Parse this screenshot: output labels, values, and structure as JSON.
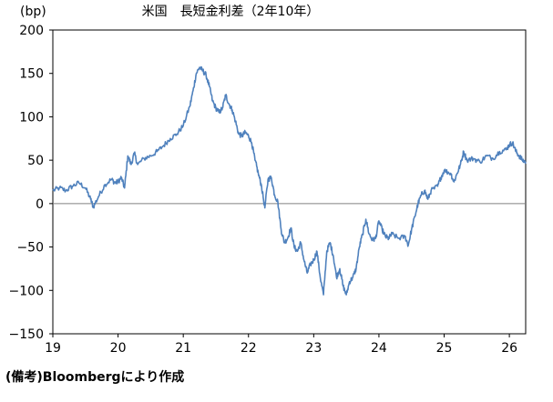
{
  "chart_data": {
    "type": "line",
    "title": "米国　長短金利差（2年10年）",
    "ylabel": "(bp)",
    "xlabel": "",
    "ylim": [
      -150,
      200
    ],
    "yticks": [
      200,
      150,
      100,
      50,
      0,
      -50,
      -100,
      -150
    ],
    "xlim": [
      2019,
      2026.25
    ],
    "xtick_labels": [
      "19",
      "20",
      "21",
      "22",
      "23",
      "24",
      "25",
      "26"
    ],
    "xtick_positions": [
      2019,
      2020,
      2021,
      2022,
      2023,
      2024,
      2025,
      2026
    ],
    "zero_line": true,
    "grid": false,
    "legend": "none",
    "series": [
      {
        "color": "#4f81bd",
        "points": [
          [
            2019.0,
            15
          ],
          [
            2019.1,
            18
          ],
          [
            2019.2,
            15
          ],
          [
            2019.3,
            20
          ],
          [
            2019.4,
            24
          ],
          [
            2019.5,
            18
          ],
          [
            2019.58,
            5
          ],
          [
            2019.62,
            -4
          ],
          [
            2019.7,
            8
          ],
          [
            2019.8,
            22
          ],
          [
            2019.9,
            28
          ],
          [
            2019.95,
            24
          ],
          [
            2020.0,
            25
          ],
          [
            2020.05,
            30
          ],
          [
            2020.1,
            18
          ],
          [
            2020.15,
            55
          ],
          [
            2020.2,
            45
          ],
          [
            2020.25,
            58
          ],
          [
            2020.3,
            45
          ],
          [
            2020.4,
            52
          ],
          [
            2020.5,
            55
          ],
          [
            2020.6,
            60
          ],
          [
            2020.7,
            67
          ],
          [
            2020.8,
            75
          ],
          [
            2020.9,
            80
          ],
          [
            2021.0,
            90
          ],
          [
            2021.1,
            112
          ],
          [
            2021.15,
            130
          ],
          [
            2021.2,
            150
          ],
          [
            2021.25,
            157
          ],
          [
            2021.3,
            153
          ],
          [
            2021.35,
            148
          ],
          [
            2021.4,
            135
          ],
          [
            2021.45,
            118
          ],
          [
            2021.5,
            110
          ],
          [
            2021.55,
            105
          ],
          [
            2021.6,
            110
          ],
          [
            2021.65,
            125
          ],
          [
            2021.7,
            115
          ],
          [
            2021.75,
            108
          ],
          [
            2021.8,
            95
          ],
          [
            2021.85,
            80
          ],
          [
            2021.9,
            78
          ],
          [
            2021.95,
            82
          ],
          [
            2022.0,
            78
          ],
          [
            2022.05,
            70
          ],
          [
            2022.1,
            50
          ],
          [
            2022.15,
            35
          ],
          [
            2022.2,
            20
          ],
          [
            2022.25,
            -5
          ],
          [
            2022.3,
            28
          ],
          [
            2022.35,
            30
          ],
          [
            2022.4,
            10
          ],
          [
            2022.45,
            2
          ],
          [
            2022.5,
            -30
          ],
          [
            2022.55,
            -45
          ],
          [
            2022.6,
            -40
          ],
          [
            2022.65,
            -28
          ],
          [
            2022.7,
            -50
          ],
          [
            2022.75,
            -55
          ],
          [
            2022.8,
            -45
          ],
          [
            2022.85,
            -65
          ],
          [
            2022.9,
            -80
          ],
          [
            2022.95,
            -70
          ],
          [
            2023.0,
            -65
          ],
          [
            2023.05,
            -55
          ],
          [
            2023.1,
            -85
          ],
          [
            2023.15,
            -105
          ],
          [
            2023.2,
            -55
          ],
          [
            2023.25,
            -45
          ],
          [
            2023.3,
            -60
          ],
          [
            2023.35,
            -85
          ],
          [
            2023.4,
            -75
          ],
          [
            2023.45,
            -95
          ],
          [
            2023.5,
            -105
          ],
          [
            2023.55,
            -90
          ],
          [
            2023.6,
            -85
          ],
          [
            2023.65,
            -75
          ],
          [
            2023.7,
            -50
          ],
          [
            2023.75,
            -35
          ],
          [
            2023.8,
            -18
          ],
          [
            2023.85,
            -35
          ],
          [
            2023.9,
            -42
          ],
          [
            2023.95,
            -40
          ],
          [
            2024.0,
            -20
          ],
          [
            2024.05,
            -30
          ],
          [
            2024.1,
            -38
          ],
          [
            2024.15,
            -40
          ],
          [
            2024.2,
            -35
          ],
          [
            2024.3,
            -40
          ],
          [
            2024.4,
            -38
          ],
          [
            2024.45,
            -48
          ],
          [
            2024.5,
            -30
          ],
          [
            2024.55,
            -15
          ],
          [
            2024.6,
            0
          ],
          [
            2024.65,
            10
          ],
          [
            2024.7,
            15
          ],
          [
            2024.75,
            5
          ],
          [
            2024.8,
            15
          ],
          [
            2024.9,
            20
          ],
          [
            2024.95,
            30
          ],
          [
            2025.0,
            38
          ],
          [
            2025.1,
            35
          ],
          [
            2025.15,
            25
          ],
          [
            2025.2,
            35
          ],
          [
            2025.25,
            45
          ],
          [
            2025.3,
            60
          ],
          [
            2025.35,
            50
          ],
          [
            2025.45,
            52
          ],
          [
            2025.55,
            48
          ],
          [
            2025.65,
            55
          ],
          [
            2025.75,
            52
          ],
          [
            2025.85,
            60
          ],
          [
            2025.95,
            62
          ],
          [
            2026.0,
            68
          ],
          [
            2026.05,
            70
          ],
          [
            2026.1,
            60
          ],
          [
            2026.15,
            55
          ],
          [
            2026.2,
            50
          ],
          [
            2026.25,
            48
          ]
        ]
      }
    ]
  },
  "footnote": "(備考)Bloombergにより作成"
}
